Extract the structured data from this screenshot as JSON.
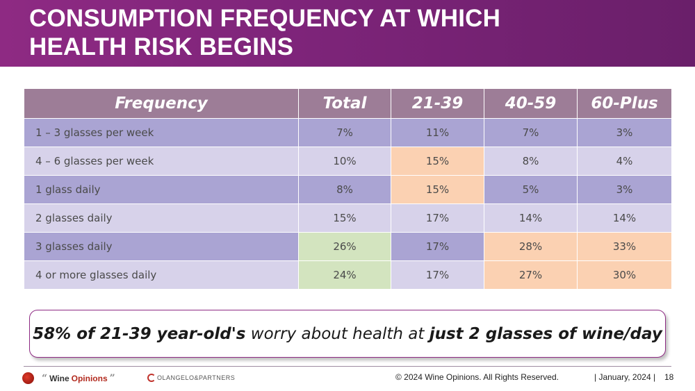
{
  "slide": {
    "title_line1": "CONSUMPTION FREQUENCY AT WHICH",
    "title_line2": "HEALTH RISK BEGINS"
  },
  "table": {
    "headers": [
      "Frequency",
      "Total",
      "21-39",
      "40-59",
      "60-Plus"
    ],
    "rows": [
      {
        "label": "1 – 3 glasses per week",
        "values": [
          "7%",
          "11%",
          "7%",
          "3%"
        ]
      },
      {
        "label": "4 – 6 glasses per week",
        "values": [
          "10%",
          "15%",
          "8%",
          "4%"
        ]
      },
      {
        "label": "1 glass daily",
        "values": [
          "8%",
          "15%",
          "5%",
          "3%"
        ]
      },
      {
        "label": "2 glasses daily",
        "values": [
          "15%",
          "17%",
          "14%",
          "14%"
        ]
      },
      {
        "label": "3 glasses daily",
        "values": [
          "26%",
          "17%",
          "28%",
          "33%"
        ]
      },
      {
        "label": "4 or more glasses daily",
        "values": [
          "24%",
          "17%",
          "27%",
          "30%"
        ]
      }
    ],
    "colors": {
      "header": "#9d7d97",
      "row_dark": "#aaa4d3",
      "row_light": "#d7d2ea",
      "highlight_orange": "#fbd1b2",
      "highlight_green": "#d3e4bf"
    }
  },
  "callout": {
    "part1": "58% of 21-39 year-old's",
    "part2": "worry about health at",
    "part3": "just 2 glasses of wine/day"
  },
  "footer": {
    "logo_quote_open": "“",
    "logo_wine": "Wine",
    "logo_opinions": "Opinions",
    "logo_quote_close": "”",
    "partner_logo": "OLANGELO&PARTNERS",
    "copyright": "© 2024 Wine Opinions.  All Rights Reserved.",
    "date": "| January, 2024 |",
    "page": "18"
  }
}
